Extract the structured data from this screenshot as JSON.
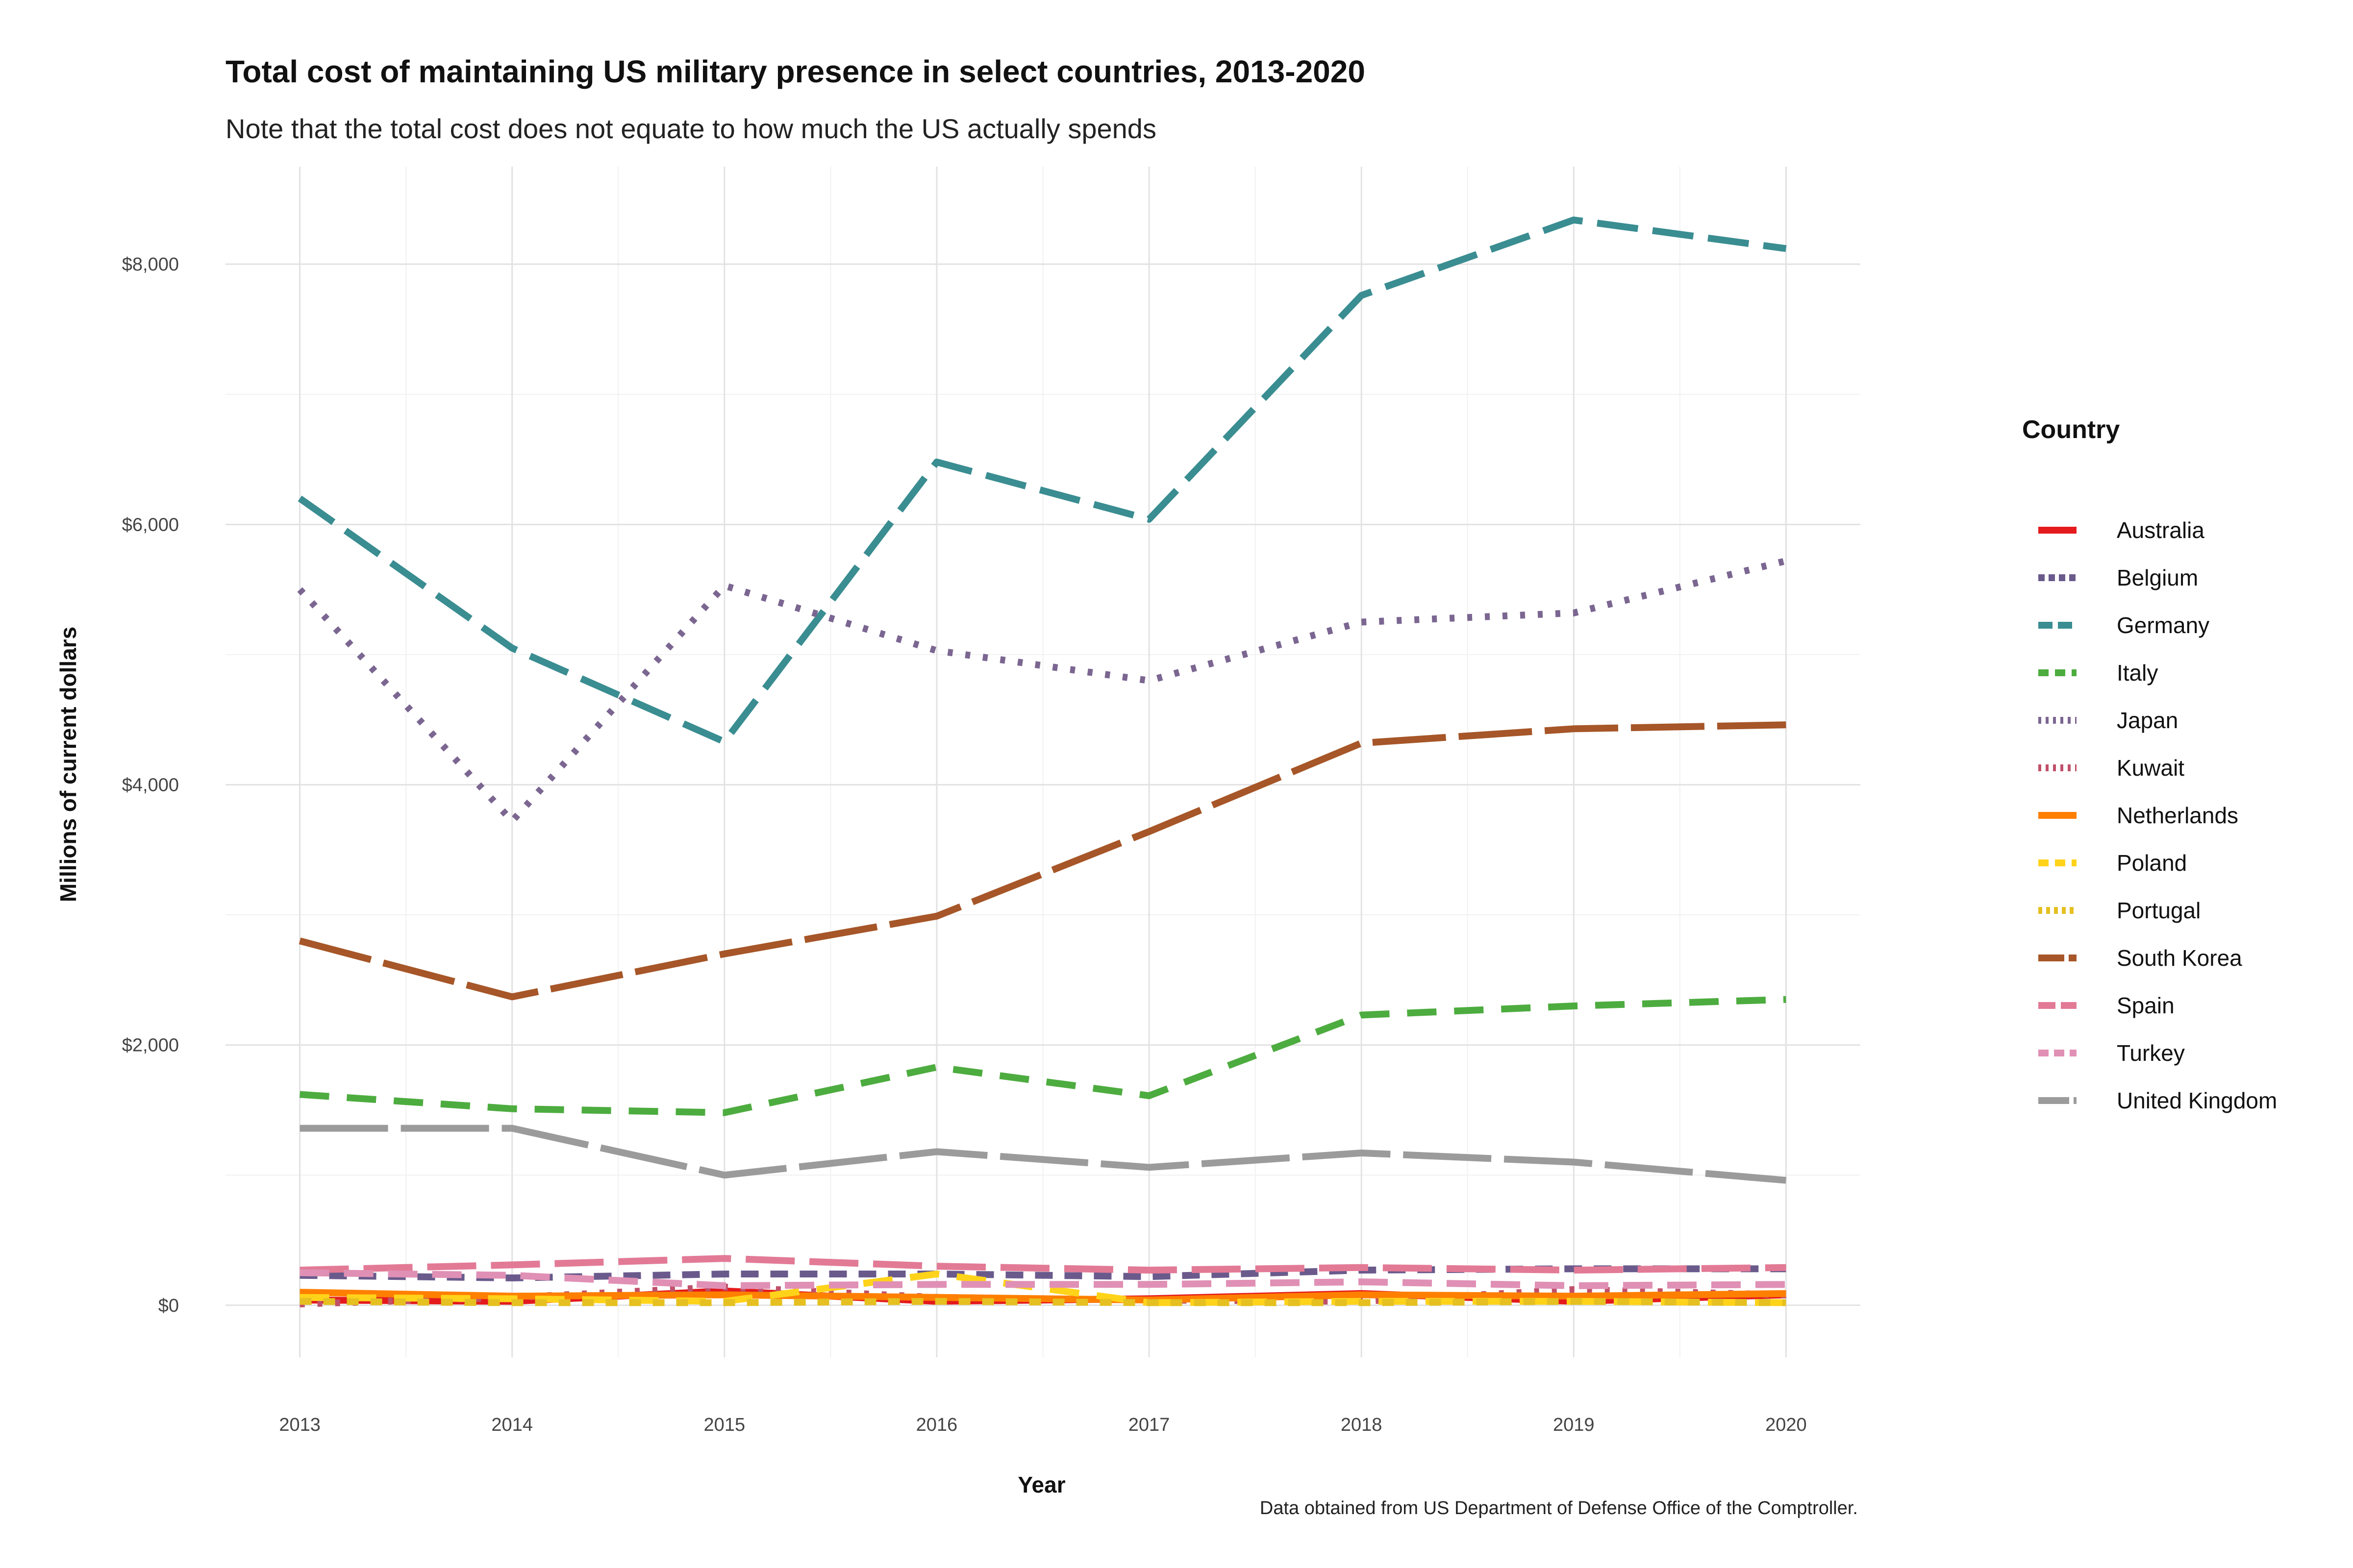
{
  "chart_data": {
    "type": "line",
    "title": "Total cost of maintaining US military presence in select countries, 2013-2020",
    "subtitle": "Note that the total cost does not equate to how much the US actually spends",
    "xlabel": "Year",
    "ylabel": "Millions of current dollars",
    "caption": "Data obtained from US Department of Defense Office of the Comptroller.",
    "x": [
      2013,
      2014,
      2015,
      2016,
      2017,
      2018,
      2019,
      2020
    ],
    "x_tick_labels": [
      "2013",
      "2014",
      "2015",
      "2016",
      "2017",
      "2018",
      "2019",
      "2020"
    ],
    "y_ticks": [
      0,
      2000,
      4000,
      6000,
      8000
    ],
    "y_tick_labels": [
      "$0",
      "$2,000",
      "$4,000",
      "$6,000",
      "$8,000"
    ],
    "ylim": [
      -400,
      8750
    ],
    "xlim": [
      2012.65,
      2020.35
    ],
    "grid": true,
    "legend_title": "Country",
    "legend_position": "right",
    "series": [
      {
        "name": "Australia",
        "color": "#e41a1c",
        "dash": "none",
        "values": [
          40,
          30,
          110,
          30,
          50,
          90,
          30,
          80
        ]
      },
      {
        "name": "Belgium",
        "color": "#6a5a8c",
        "dash": "36 24",
        "values": [
          230,
          210,
          240,
          240,
          220,
          270,
          280,
          280
        ]
      },
      {
        "name": "Germany",
        "color": "#3a8d91",
        "dash": "84 30",
        "values": [
          6200,
          5050,
          4330,
          6480,
          6040,
          7760,
          8340,
          8120
        ]
      },
      {
        "name": "Italy",
        "color": "#4dac3f",
        "dash": "60 36",
        "values": [
          1620,
          1510,
          1480,
          1830,
          1610,
          2230,
          2300,
          2350
        ]
      },
      {
        "name": "Japan",
        "color": "#7b6691",
        "dash": "10 26",
        "values": [
          5500,
          3720,
          5530,
          5030,
          4800,
          5250,
          5320,
          5720
        ]
      },
      {
        "name": "Kuwait",
        "color": "#c0506a",
        "dash": "10 26",
        "values": [
          10,
          60,
          140,
          60,
          40,
          30,
          120,
          80
        ]
      },
      {
        "name": "Netherlands",
        "color": "#ff7f00",
        "dash": "none",
        "values": [
          100,
          70,
          80,
          60,
          40,
          80,
          70,
          90
        ]
      },
      {
        "name": "Poland",
        "color": "#ffd31a",
        "dash": "60 36",
        "values": [
          60,
          50,
          30,
          240,
          20,
          30,
          30,
          20
        ]
      },
      {
        "name": "Portugal",
        "color": "#e5c020",
        "dash": "24 24",
        "values": [
          30,
          20,
          20,
          30,
          20,
          20,
          30,
          20
        ]
      },
      {
        "name": "South Korea",
        "color": "#a65628",
        "dash": "150 26",
        "values": [
          2800,
          2370,
          2700,
          2990,
          3640,
          4320,
          4430,
          4460
        ]
      },
      {
        "name": "Spain",
        "color": "#e27a96",
        "dash": "100 30",
        "values": [
          270,
          310,
          360,
          300,
          270,
          290,
          270,
          290
        ]
      },
      {
        "name": "Turkey",
        "color": "#e090b5",
        "dash": "60 30",
        "values": [
          250,
          230,
          150,
          160,
          160,
          180,
          150,
          160
        ]
      },
      {
        "name": "United Kingdom",
        "color": "#9b9b9b",
        "dash": "180 26",
        "values": [
          1360,
          1360,
          1000,
          1180,
          1060,
          1170,
          1100,
          960
        ]
      }
    ]
  }
}
